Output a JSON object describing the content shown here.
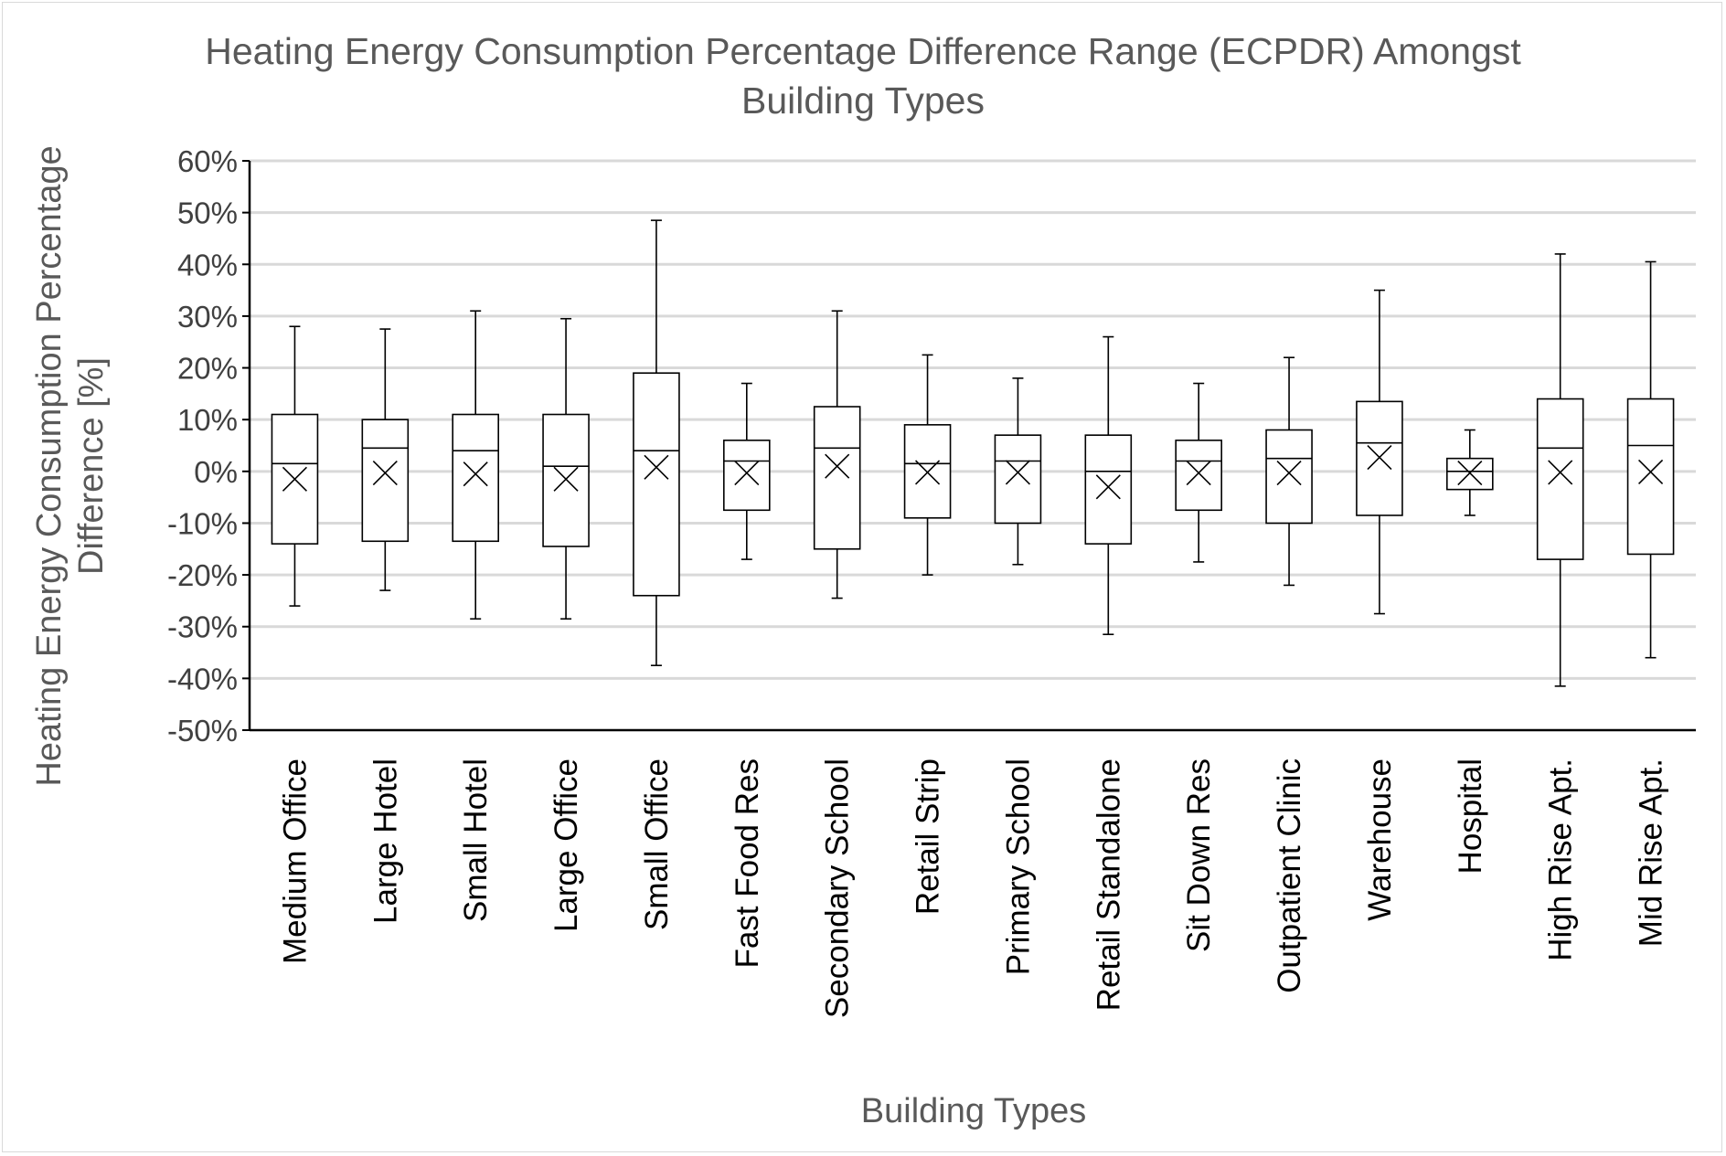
{
  "chart_data": {
    "type": "boxplot",
    "title_lines": [
      "Heating Energy Consumption Percentage Difference Range (ECPDR) Amongst",
      "Building Types"
    ],
    "xlabel": "Building Types",
    "ylabel_lines": [
      "Heating Energy Consumption Percentage",
      "Difference [%]"
    ],
    "ylim": [
      -50,
      60
    ],
    "yticks": [
      60,
      50,
      40,
      30,
      20,
      10,
      0,
      -10,
      -20,
      -30,
      -40,
      -50
    ],
    "ytick_labels": [
      "60%",
      "50%",
      "40%",
      "30%",
      "20%",
      "10%",
      "0%",
      "-10%",
      "-20%",
      "-30%",
      "-40%",
      "-50%"
    ],
    "grid": true,
    "legend": "none",
    "categories": [
      "Medium Office",
      "Large Hotel",
      "Small Hotel",
      "Large Office",
      "Small Office",
      "Fast Food Res",
      "Secondary School",
      "Retail Strip",
      "Primary School",
      "Retail Standalone",
      "Sit Down Res",
      "Outpatient Clinic",
      "Warehouse",
      "Hospital",
      "High Rise Apt.",
      "Mid Rise Apt."
    ],
    "boxes": [
      {
        "min": -26,
        "q1": -14,
        "median": 1.5,
        "q3": 11,
        "max": 28,
        "mean": -1.5
      },
      {
        "min": -23,
        "q1": -13.5,
        "median": 4.5,
        "q3": 10,
        "max": 27.5,
        "mean": -0.3
      },
      {
        "min": -28.5,
        "q1": -13.5,
        "median": 4,
        "q3": 11,
        "max": 31,
        "mean": -0.5
      },
      {
        "min": -28.5,
        "q1": -14.5,
        "median": 1,
        "q3": 11,
        "max": 29.5,
        "mean": -1.5
      },
      {
        "min": -37.5,
        "q1": -24,
        "median": 4,
        "q3": 19,
        "max": 48.5,
        "mean": 0.8
      },
      {
        "min": -17,
        "q1": -7.5,
        "median": 2,
        "q3": 6,
        "max": 17,
        "mean": -0.3
      },
      {
        "min": -24.5,
        "q1": -15,
        "median": 4.5,
        "q3": 12.5,
        "max": 31,
        "mean": 1
      },
      {
        "min": -20,
        "q1": -9,
        "median": 1.5,
        "q3": 9,
        "max": 22.5,
        "mean": -0.2
      },
      {
        "min": -18,
        "q1": -10,
        "median": 2,
        "q3": 7,
        "max": 18,
        "mean": -0.2
      },
      {
        "min": -31.5,
        "q1": -14,
        "median": 0,
        "q3": 7,
        "max": 26,
        "mean": -3
      },
      {
        "min": -17.5,
        "q1": -7.5,
        "median": 2,
        "q3": 6,
        "max": 17,
        "mean": -0.3
      },
      {
        "min": -22,
        "q1": -10,
        "median": 2.5,
        "q3": 8,
        "max": 22,
        "mean": -0.3
      },
      {
        "min": -27.5,
        "q1": -8.5,
        "median": 5.5,
        "q3": 13.5,
        "max": 35,
        "mean": 2.7
      },
      {
        "min": -8.5,
        "q1": -3.5,
        "median": 0,
        "q3": 2.5,
        "max": 8,
        "mean": -0.3
      },
      {
        "min": -41.5,
        "q1": -17,
        "median": 4.5,
        "q3": 14,
        "max": 42,
        "mean": -0.2
      },
      {
        "min": -36,
        "q1": -16,
        "median": 5,
        "q3": 14,
        "max": 40.5,
        "mean": -0.1
      }
    ]
  }
}
